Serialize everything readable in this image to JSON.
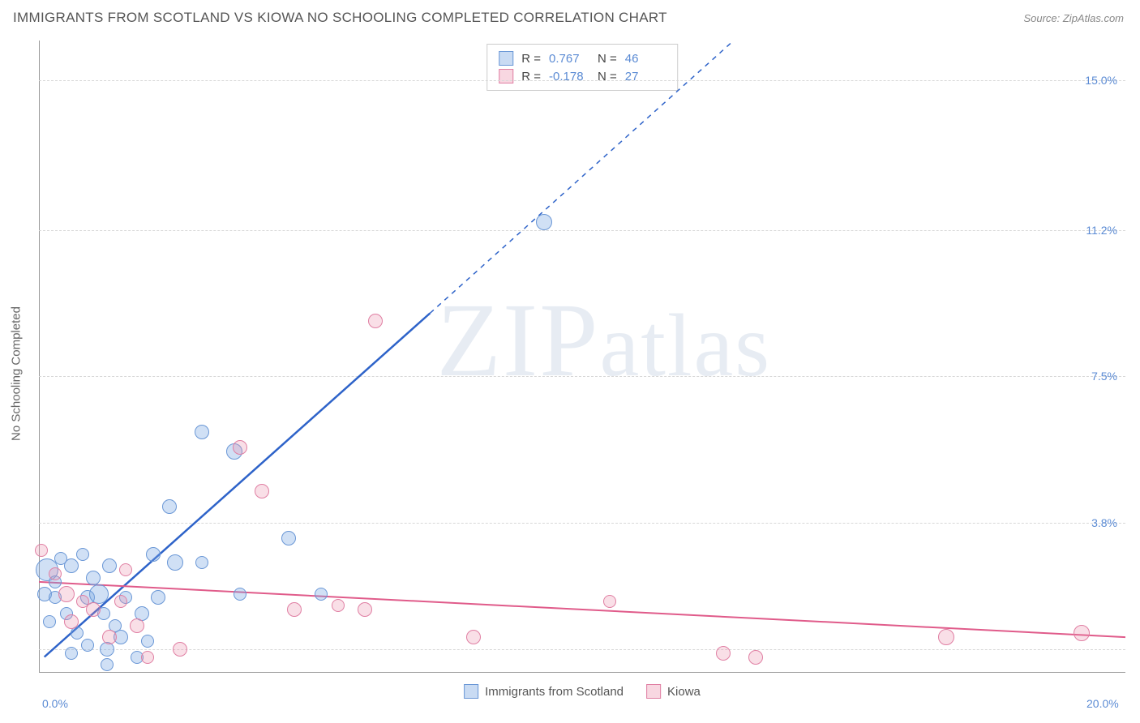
{
  "header": {
    "title": "IMMIGRANTS FROM SCOTLAND VS KIOWA NO SCHOOLING COMPLETED CORRELATION CHART",
    "source": "Source: ZipAtlas.com"
  },
  "watermark": "ZIPatlas",
  "chart": {
    "type": "scatter",
    "ylabel": "No Schooling Completed",
    "background_color": "#ffffff",
    "grid_color": "#d8d8d8",
    "xlim": [
      0,
      20
    ],
    "ylim": [
      0,
      16
    ],
    "xtick_labels": [
      {
        "value": 0,
        "label": "0.0%"
      },
      {
        "value": 20,
        "label": "20.0%"
      }
    ],
    "ytick_labels": [
      {
        "value": 3.8,
        "label": "3.8%"
      },
      {
        "value": 7.5,
        "label": "7.5%"
      },
      {
        "value": 11.2,
        "label": "11.2%"
      },
      {
        "value": 15.0,
        "label": "15.0%"
      }
    ],
    "grid_y_values": [
      0.6,
      3.8,
      7.5,
      11.2,
      15.0
    ],
    "series": [
      {
        "name": "Immigrants from Scotland",
        "color_fill": "rgba(120,165,225,0.35)",
        "color_stroke": "#6a97d6",
        "trend_color": "#2e63c9",
        "R": "0.767",
        "N": "46",
        "trend": {
          "x1": 0.1,
          "y1": 0.4,
          "x2": 7.2,
          "y2": 9.1,
          "x2_dash": 13.6,
          "y2_dash": 17.0
        },
        "points": [
          {
            "x": 0.15,
            "y": 2.6,
            "r": 14
          },
          {
            "x": 0.1,
            "y": 2.0,
            "r": 9
          },
          {
            "x": 0.4,
            "y": 2.9,
            "r": 8
          },
          {
            "x": 0.6,
            "y": 2.7,
            "r": 9
          },
          {
            "x": 0.3,
            "y": 1.9,
            "r": 8
          },
          {
            "x": 0.8,
            "y": 3.0,
            "r": 8
          },
          {
            "x": 0.9,
            "y": 1.9,
            "r": 9
          },
          {
            "x": 0.5,
            "y": 1.5,
            "r": 8
          },
          {
            "x": 1.0,
            "y": 2.4,
            "r": 9
          },
          {
            "x": 1.1,
            "y": 2.0,
            "r": 12
          },
          {
            "x": 1.2,
            "y": 1.5,
            "r": 8
          },
          {
            "x": 1.25,
            "y": 0.6,
            "r": 9
          },
          {
            "x": 1.25,
            "y": 0.2,
            "r": 8
          },
          {
            "x": 0.6,
            "y": 0.5,
            "r": 8
          },
          {
            "x": 0.7,
            "y": 1.0,
            "r": 8
          },
          {
            "x": 1.5,
            "y": 0.9,
            "r": 9
          },
          {
            "x": 1.3,
            "y": 2.7,
            "r": 9
          },
          {
            "x": 1.6,
            "y": 1.9,
            "r": 8
          },
          {
            "x": 1.9,
            "y": 1.5,
            "r": 9
          },
          {
            "x": 2.1,
            "y": 3.0,
            "r": 9
          },
          {
            "x": 2.0,
            "y": 0.8,
            "r": 8
          },
          {
            "x": 2.2,
            "y": 1.9,
            "r": 9
          },
          {
            "x": 2.4,
            "y": 4.2,
            "r": 9
          },
          {
            "x": 2.5,
            "y": 2.8,
            "r": 10
          },
          {
            "x": 3.0,
            "y": 2.8,
            "r": 8
          },
          {
            "x": 3.0,
            "y": 6.1,
            "r": 9
          },
          {
            "x": 3.6,
            "y": 5.6,
            "r": 10
          },
          {
            "x": 3.7,
            "y": 2.0,
            "r": 8
          },
          {
            "x": 4.6,
            "y": 3.4,
            "r": 9
          },
          {
            "x": 5.2,
            "y": 2.0,
            "r": 8
          },
          {
            "x": 9.3,
            "y": 11.4,
            "r": 10
          },
          {
            "x": 1.8,
            "y": 0.4,
            "r": 8
          },
          {
            "x": 0.9,
            "y": 0.7,
            "r": 8
          },
          {
            "x": 1.4,
            "y": 1.2,
            "r": 8
          },
          {
            "x": 0.2,
            "y": 1.3,
            "r": 8
          },
          {
            "x": 0.3,
            "y": 2.3,
            "r": 8
          }
        ]
      },
      {
        "name": "Kiowa",
        "color_fill": "rgba(235,140,170,0.28)",
        "color_stroke": "#e07fa3",
        "trend_color": "#e05b8a",
        "R": "-0.178",
        "N": "27",
        "trend": {
          "x1": 0,
          "y1": 2.3,
          "x2": 20,
          "y2": 0.9
        },
        "points": [
          {
            "x": 0.05,
            "y": 3.1,
            "r": 8
          },
          {
            "x": 0.3,
            "y": 2.5,
            "r": 8
          },
          {
            "x": 0.5,
            "y": 2.0,
            "r": 10
          },
          {
            "x": 0.6,
            "y": 1.3,
            "r": 9
          },
          {
            "x": 0.8,
            "y": 1.8,
            "r": 8
          },
          {
            "x": 1.0,
            "y": 1.6,
            "r": 9
          },
          {
            "x": 1.3,
            "y": 0.9,
            "r": 9
          },
          {
            "x": 1.5,
            "y": 1.8,
            "r": 8
          },
          {
            "x": 1.8,
            "y": 1.2,
            "r": 9
          },
          {
            "x": 1.6,
            "y": 2.6,
            "r": 8
          },
          {
            "x": 2.0,
            "y": 0.4,
            "r": 8
          },
          {
            "x": 2.6,
            "y": 0.6,
            "r": 9
          },
          {
            "x": 3.7,
            "y": 5.7,
            "r": 9
          },
          {
            "x": 4.1,
            "y": 4.6,
            "r": 9
          },
          {
            "x": 4.7,
            "y": 1.6,
            "r": 9
          },
          {
            "x": 5.5,
            "y": 1.7,
            "r": 8
          },
          {
            "x": 6.0,
            "y": 1.6,
            "r": 9
          },
          {
            "x": 6.2,
            "y": 8.9,
            "r": 9
          },
          {
            "x": 8.0,
            "y": 0.9,
            "r": 9
          },
          {
            "x": 10.5,
            "y": 1.8,
            "r": 8
          },
          {
            "x": 12.6,
            "y": 0.5,
            "r": 9
          },
          {
            "x": 13.2,
            "y": 0.4,
            "r": 9
          },
          {
            "x": 16.7,
            "y": 0.9,
            "r": 10
          },
          {
            "x": 19.2,
            "y": 1.0,
            "r": 10
          }
        ]
      }
    ],
    "legend_bottom": [
      {
        "swatch": "a",
        "label": "Immigrants from Scotland"
      },
      {
        "swatch": "b",
        "label": "Kiowa"
      }
    ]
  }
}
